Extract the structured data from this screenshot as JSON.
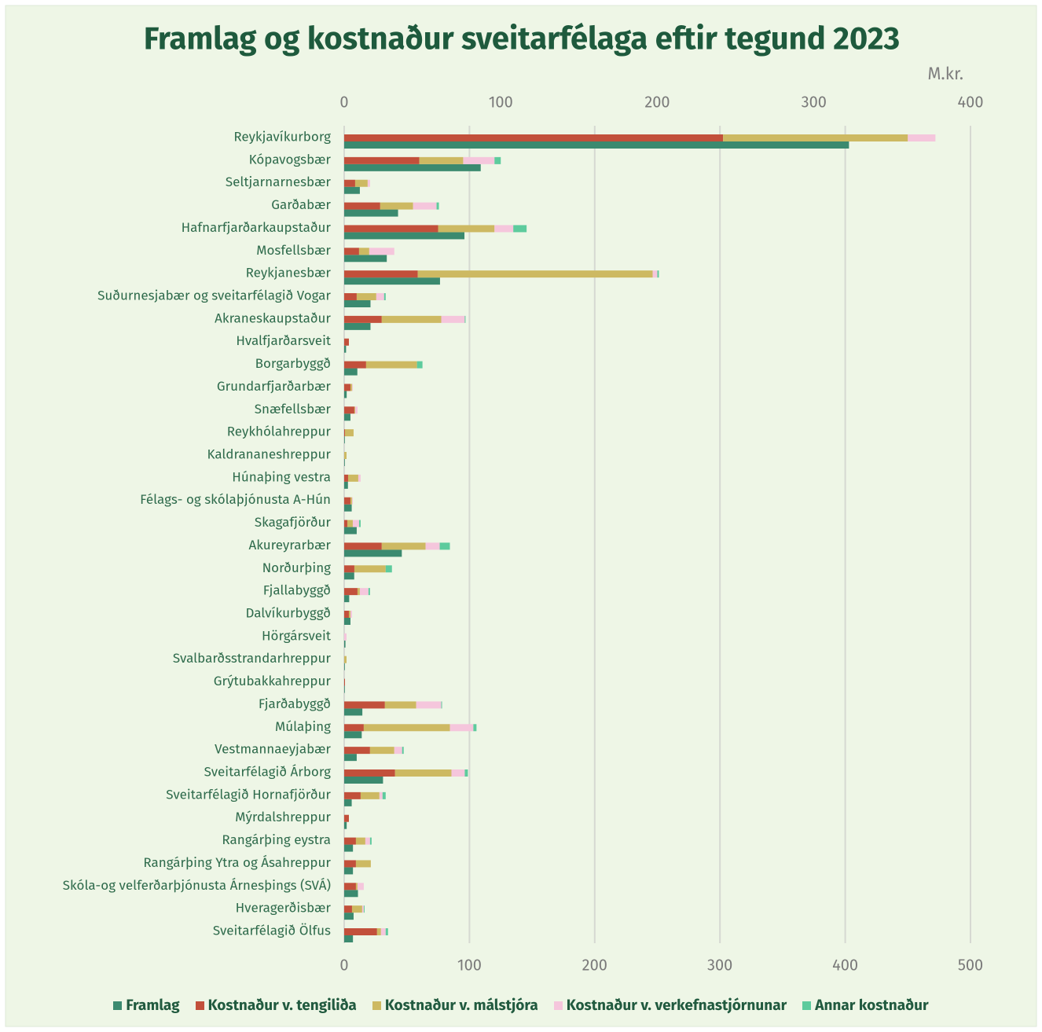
{
  "chart_data": {
    "type": "bar",
    "orientation": "horizontal",
    "title": "Framlag og kostnaður sveitarfélaga eftir tegund 2023",
    "x2_label": "M.kr.",
    "categories": [
      "Reykjavíkurborg",
      "Kópavogsbær",
      "Seltjarnarnesbær",
      "Garðabær",
      "Hafnarfjarðarkaupstaður",
      "Mosfellsbær",
      "Reykjanesbær",
      "Suðurnesjabær og sveitarfélagið Vogar",
      "Akraneskaupstaður",
      "Hvalfjarðarsveit",
      "Borgarbyggð",
      "Grundarfjarðarbær",
      "Snæfellsbær",
      "Reykhólahreppur",
      "Kaldrananeshreppur",
      "Húnaþing vestra",
      "Félags- og skólaþjónusta A-Hún",
      "Skagafjörður",
      "Akureyrarbær",
      "Norðurþing",
      "Fjallabyggð",
      "Dalvíkurbyggð",
      "Hörgársveit",
      "Svalbarðsstrandarhreppur",
      "Grýtubakkahreppur",
      "Fjarðabyggð",
      "Múlaþing",
      "Vestmannaeyjabær",
      "Sveitarfélagið Árborg",
      "Sveitarfélagið Hornafjörður",
      "Mýrdalshreppur",
      "Rangárþing eystra",
      "Rangárþing Ytra og Ásahreppur",
      "Skóla-og velferðarþjónusta Árnesþings (SVÁ)",
      "Hveragerðisbær",
      "Sveitarfélagið Ölfus"
    ],
    "series": [
      {
        "name": "Framlag",
        "color": "#3b8a6f",
        "axis": "x",
        "values": [
          403,
          109,
          12.5,
          43,
          96,
          34,
          76.5,
          21,
          21,
          1.5,
          10.5,
          2,
          5,
          0.5,
          0.5,
          3,
          6,
          10,
          46,
          8,
          4,
          5,
          1,
          0.5,
          0.5,
          14.5,
          14,
          10,
          31,
          6,
          2,
          7,
          7,
          11,
          7.5,
          7
        ]
      },
      {
        "name": "Kostnaður v. tengiliða",
        "color": "#c2503b",
        "axis": "x2",
        "stack": "cost",
        "values": [
          242,
          48,
          7,
          23,
          60,
          9.5,
          47,
          8,
          24,
          3,
          14,
          4,
          6.5,
          0.5,
          0,
          2.5,
          4,
          2,
          24,
          6.5,
          8.5,
          3,
          0,
          0,
          0.5,
          26,
          12.5,
          16.5,
          32.5,
          10.5,
          3,
          7.5,
          7.5,
          7.5,
          5,
          21
        ]
      },
      {
        "name": "Kostnaður v. málstjóra",
        "color": "#cdb962",
        "axis": "x2",
        "stack": "cost",
        "values": [
          118,
          28,
          8,
          21,
          36,
          6.5,
          150,
          12.5,
          38,
          0,
          32.5,
          1,
          0.5,
          5.5,
          1.5,
          6.5,
          1,
          3.5,
          28,
          20,
          1.5,
          1,
          0,
          1.5,
          0,
          20,
          55,
          15.5,
          36,
          12,
          0,
          6,
          9.5,
          1,
          6.5,
          2.5
        ]
      },
      {
        "name": "Kostnaður v. verkefnastjórnunar",
        "color": "#f5c6dc",
        "axis": "x2",
        "stack": "cost",
        "values": [
          17.6,
          20,
          1.5,
          15,
          12,
          16,
          3,
          5,
          15,
          0,
          0,
          0.5,
          1.5,
          0,
          0,
          1.5,
          0.5,
          4,
          9,
          0,
          5.5,
          1,
          1.5,
          0,
          0,
          16,
          15,
          5,
          8.5,
          2,
          0,
          3,
          0,
          4,
          1,
          3
        ]
      },
      {
        "name": "Annar kostnaður",
        "color": "#5dcb9d",
        "axis": "x2",
        "stack": "cost",
        "values": [
          0,
          4,
          0,
          1.5,
          8.5,
          0,
          1,
          1,
          0.5,
          0,
          3.5,
          0,
          0,
          0,
          0,
          0,
          0,
          1,
          6.5,
          4,
          1,
          0,
          0,
          0,
          0,
          0.5,
          2,
          1,
          2,
          2,
          0,
          1,
          0,
          0,
          0.5,
          1.5
        ]
      }
    ],
    "xlim": [
      0,
      500
    ],
    "xticks": [
      0,
      100,
      200,
      300,
      400,
      500
    ],
    "x2lim": [
      0,
      400
    ],
    "x2ticks": [
      0,
      100,
      200,
      300,
      400
    ],
    "grid": true,
    "legend": "bottom"
  }
}
